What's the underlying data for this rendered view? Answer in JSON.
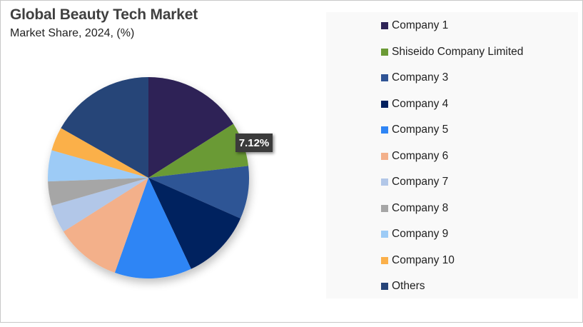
{
  "header": {
    "title": "Global Beauty Tech Market",
    "subtitle": "Market Share, 2024, (%)"
  },
  "data_label": "7.12%",
  "legend": {
    "items": [
      {
        "label": "Company 1",
        "color": "#2e2457"
      },
      {
        "label": "Shiseido Company Limited",
        "color": "#6b9a35"
      },
      {
        "label": "Company 3",
        "color": "#2f5495"
      },
      {
        "label": "Company 4",
        "color": "#03215f"
      },
      {
        "label": "Company 5",
        "color": "#2f85f5"
      },
      {
        "label": "Company 6",
        "color": "#f3b08a"
      },
      {
        "label": "Company 7",
        "color": "#b2c7e8"
      },
      {
        "label": "Company 8",
        "color": "#a6a6a6"
      },
      {
        "label": "Company 9",
        "color": "#9dcbf6"
      },
      {
        "label": "Company 10",
        "color": "#fbb04a"
      },
      {
        "label": "Others",
        "color": "#264478"
      }
    ]
  },
  "chart_data": {
    "type": "pie",
    "title": "Global Beauty Tech Market",
    "subtitle": "Market Share, 2024, (%)",
    "categories": [
      "Company 1",
      "Shiseido Company Limited",
      "Company 3",
      "Company 4",
      "Company 5",
      "Company 6",
      "Company 7",
      "Company 8",
      "Company 9",
      "Company 10",
      "Others"
    ],
    "values": [
      16.0,
      7.12,
      8.5,
      11.4,
      12.4,
      10.6,
      4.5,
      3.9,
      5.0,
      3.8,
      16.78
    ],
    "colors": [
      "#2e2457",
      "#6b9a35",
      "#2f5495",
      "#03215f",
      "#2f85f5",
      "#f3b08a",
      "#b2c7e8",
      "#a6a6a6",
      "#9dcbf6",
      "#fbb04a",
      "#264478"
    ],
    "annotations": [
      {
        "category": "Shiseido Company Limited",
        "label": "7.12%"
      }
    ],
    "legend_position": "right",
    "start_angle": "12 o'clock, clockwise"
  }
}
